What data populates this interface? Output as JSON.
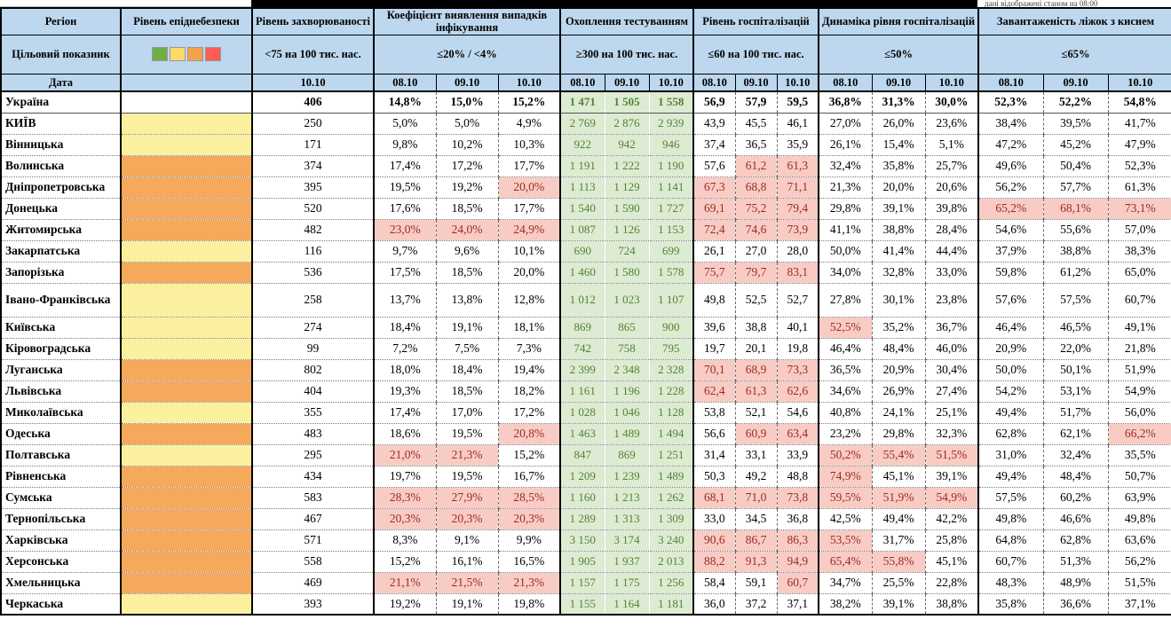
{
  "top_note": "дані відображені станом на 08:00",
  "header": {
    "col_region": "Регіон",
    "col_danger": "Рівень епіднебезпеки",
    "col_incidence": "Рівень захворюваності",
    "col_coef": "Коефіцієнт виявлення випадків інфікування",
    "col_testing": "Охоплення тестуванням",
    "col_hosp": "Рівень госпіталізацій",
    "col_dyn": "Динаміка рівня госпіталізацій",
    "col_oxygen": "Завантаженість ліжок з киснем",
    "row2_label": "Цільовий показник",
    "row3_label": "Дата",
    "target_incidence": "<75 на 100 тис. нас.",
    "target_coef": "≤20% / <4%",
    "target_testing": "≥300 на 100 тис. нас.",
    "target_hosp": "≤60 на 100 тис. нас.",
    "target_dyn": "≤50%",
    "target_oxygen": "≤65%",
    "incidence_date": "10.10",
    "dates": [
      "08.10",
      "09.10",
      "10.10"
    ],
    "legend_colors": [
      "#70AD47",
      "#FFD966",
      "#F4A04C",
      "#FF5B57"
    ]
  },
  "rows": [
    {
      "name": "Україна",
      "danger": "",
      "bold": true,
      "inc": "406",
      "coef": [
        "14,8%",
        "15,0%",
        "15,2%"
      ],
      "chl": [
        0,
        0,
        0
      ],
      "test": [
        "1 471",
        "1 505",
        "1 558"
      ],
      "hosp": [
        "56,9",
        "57,9",
        "59,5"
      ],
      "hhl": [
        0,
        0,
        0
      ],
      "dyn": [
        "36,8%",
        "31,3%",
        "30,0%"
      ],
      "dhl": [
        0,
        0,
        0
      ],
      "oxy": [
        "52,3%",
        "52,2%",
        "54,8%"
      ],
      "ohl": [
        0,
        0,
        0
      ]
    },
    {
      "name": "КИЇВ",
      "danger": "yellow",
      "inc": "250",
      "coef": [
        "5,0%",
        "5,0%",
        "4,9%"
      ],
      "chl": [
        0,
        0,
        0
      ],
      "test": [
        "2 769",
        "2 876",
        "2 939"
      ],
      "hosp": [
        "43,9",
        "45,5",
        "46,1"
      ],
      "hhl": [
        0,
        0,
        0
      ],
      "dyn": [
        "27,0%",
        "26,0%",
        "23,6%"
      ],
      "dhl": [
        0,
        0,
        0
      ],
      "oxy": [
        "38,4%",
        "39,5%",
        "41,7%"
      ],
      "ohl": [
        0,
        0,
        0
      ]
    },
    {
      "name": "Вінницька",
      "danger": "yellow",
      "inc": "171",
      "coef": [
        "9,8%",
        "10,2%",
        "10,3%"
      ],
      "chl": [
        0,
        0,
        0
      ],
      "test": [
        "922",
        "942",
        "946"
      ],
      "hosp": [
        "37,4",
        "36,5",
        "35,9"
      ],
      "hhl": [
        0,
        0,
        0
      ],
      "dyn": [
        "26,1%",
        "15,4%",
        "5,1%"
      ],
      "dhl": [
        0,
        0,
        0
      ],
      "oxy": [
        "47,2%",
        "45,2%",
        "47,9%"
      ],
      "ohl": [
        0,
        0,
        0
      ]
    },
    {
      "name": "Волинська",
      "danger": "orange",
      "inc": "374",
      "coef": [
        "17,4%",
        "17,2%",
        "17,7%"
      ],
      "chl": [
        0,
        0,
        0
      ],
      "test": [
        "1 191",
        "1 222",
        "1 190"
      ],
      "hosp": [
        "57,6",
        "61,2",
        "61,3"
      ],
      "hhl": [
        0,
        1,
        1
      ],
      "dyn": [
        "32,4%",
        "35,8%",
        "25,7%"
      ],
      "dhl": [
        0,
        0,
        0
      ],
      "oxy": [
        "49,6%",
        "50,4%",
        "52,3%"
      ],
      "ohl": [
        0,
        0,
        0
      ]
    },
    {
      "name": "Дніпропетровська",
      "danger": "orange",
      "inc": "395",
      "coef": [
        "19,5%",
        "19,2%",
        "20,0%"
      ],
      "chl": [
        0,
        0,
        1
      ],
      "test": [
        "1 113",
        "1 129",
        "1 141"
      ],
      "hosp": [
        "67,3",
        "68,8",
        "71,1"
      ],
      "hhl": [
        1,
        1,
        1
      ],
      "dyn": [
        "21,3%",
        "20,0%",
        "20,6%"
      ],
      "dhl": [
        0,
        0,
        0
      ],
      "oxy": [
        "56,2%",
        "57,7%",
        "61,3%"
      ],
      "ohl": [
        0,
        0,
        0
      ]
    },
    {
      "name": "Донецька",
      "danger": "orange",
      "inc": "520",
      "coef": [
        "17,6%",
        "18,5%",
        "17,7%"
      ],
      "chl": [
        0,
        0,
        0
      ],
      "test": [
        "1 540",
        "1 590",
        "1 727"
      ],
      "hosp": [
        "69,1",
        "75,2",
        "79,4"
      ],
      "hhl": [
        1,
        1,
        1
      ],
      "dyn": [
        "29,8%",
        "39,1%",
        "39,8%"
      ],
      "dhl": [
        0,
        0,
        0
      ],
      "oxy": [
        "65,2%",
        "68,1%",
        "73,1%"
      ],
      "ohl": [
        1,
        1,
        1
      ]
    },
    {
      "name": "Житомирська",
      "danger": "orange",
      "inc": "482",
      "coef": [
        "23,0%",
        "24,0%",
        "24,9%"
      ],
      "chl": [
        1,
        1,
        1
      ],
      "test": [
        "1 087",
        "1 126",
        "1 153"
      ],
      "hosp": [
        "72,4",
        "74,6",
        "73,9"
      ],
      "hhl": [
        1,
        1,
        1
      ],
      "dyn": [
        "41,1%",
        "38,8%",
        "28,4%"
      ],
      "dhl": [
        0,
        0,
        0
      ],
      "oxy": [
        "54,6%",
        "55,6%",
        "57,0%"
      ],
      "ohl": [
        0,
        0,
        0
      ]
    },
    {
      "name": "Закарпатська",
      "danger": "yellow",
      "inc": "116",
      "coef": [
        "9,7%",
        "9,6%",
        "10,1%"
      ],
      "chl": [
        0,
        0,
        0
      ],
      "test": [
        "690",
        "724",
        "699"
      ],
      "hosp": [
        "26,1",
        "27,0",
        "28,0"
      ],
      "hhl": [
        0,
        0,
        0
      ],
      "dyn": [
        "50,0%",
        "41,4%",
        "44,4%"
      ],
      "dhl": [
        0,
        0,
        0
      ],
      "oxy": [
        "37,9%",
        "38,8%",
        "38,3%"
      ],
      "ohl": [
        0,
        0,
        0
      ]
    },
    {
      "name": "Запорізька",
      "danger": "orange",
      "inc": "536",
      "coef": [
        "17,5%",
        "18,5%",
        "20,0%"
      ],
      "chl": [
        0,
        0,
        0
      ],
      "test": [
        "1 460",
        "1 580",
        "1 578"
      ],
      "hosp": [
        "75,7",
        "79,7",
        "83,1"
      ],
      "hhl": [
        1,
        1,
        1
      ],
      "dyn": [
        "34,0%",
        "32,8%",
        "33,0%"
      ],
      "dhl": [
        0,
        0,
        0
      ],
      "oxy": [
        "59,8%",
        "61,2%",
        "65,0%"
      ],
      "ohl": [
        0,
        0,
        0
      ]
    },
    {
      "name": "Івано-Франківська",
      "danger": "yellow",
      "tall": true,
      "inc": "258",
      "coef": [
        "13,7%",
        "13,8%",
        "12,8%"
      ],
      "chl": [
        0,
        0,
        0
      ],
      "test": [
        "1 012",
        "1 023",
        "1 107"
      ],
      "hosp": [
        "49,8",
        "52,5",
        "52,7"
      ],
      "hhl": [
        0,
        0,
        0
      ],
      "dyn": [
        "27,8%",
        "30,1%",
        "23,8%"
      ],
      "dhl": [
        0,
        0,
        0
      ],
      "oxy": [
        "57,6%",
        "57,5%",
        "60,7%"
      ],
      "ohl": [
        0,
        0,
        0
      ]
    },
    {
      "name": "Київська",
      "danger": "yellow",
      "inc": "274",
      "coef": [
        "18,4%",
        "19,1%",
        "18,1%"
      ],
      "chl": [
        0,
        0,
        0
      ],
      "test": [
        "869",
        "865",
        "900"
      ],
      "hosp": [
        "39,6",
        "38,8",
        "40,1"
      ],
      "hhl": [
        0,
        0,
        0
      ],
      "dyn": [
        "52,5%",
        "35,2%",
        "36,7%"
      ],
      "dhl": [
        1,
        0,
        0
      ],
      "oxy": [
        "46,4%",
        "46,5%",
        "49,1%"
      ],
      "ohl": [
        0,
        0,
        0
      ]
    },
    {
      "name": "Кіровоградська",
      "danger": "yellow",
      "inc": "99",
      "coef": [
        "7,2%",
        "7,5%",
        "7,3%"
      ],
      "chl": [
        0,
        0,
        0
      ],
      "test": [
        "742",
        "758",
        "795"
      ],
      "hosp": [
        "19,7",
        "20,1",
        "19,8"
      ],
      "hhl": [
        0,
        0,
        0
      ],
      "dyn": [
        "46,4%",
        "48,4%",
        "46,0%"
      ],
      "dhl": [
        0,
        0,
        0
      ],
      "oxy": [
        "20,9%",
        "22,0%",
        "21,8%"
      ],
      "ohl": [
        0,
        0,
        0
      ]
    },
    {
      "name": "Луганська",
      "danger": "orange",
      "inc": "802",
      "coef": [
        "18,0%",
        "18,4%",
        "19,4%"
      ],
      "chl": [
        0,
        0,
        0
      ],
      "test": [
        "2 399",
        "2 348",
        "2 328"
      ],
      "hosp": [
        "70,1",
        "68,9",
        "73,3"
      ],
      "hhl": [
        1,
        1,
        1
      ],
      "dyn": [
        "36,5%",
        "20,9%",
        "30,4%"
      ],
      "dhl": [
        0,
        0,
        0
      ],
      "oxy": [
        "50,0%",
        "50,1%",
        "51,9%"
      ],
      "ohl": [
        0,
        0,
        0
      ]
    },
    {
      "name": "Львівська",
      "danger": "orange",
      "inc": "404",
      "coef": [
        "19,3%",
        "18,5%",
        "18,2%"
      ],
      "chl": [
        0,
        0,
        0
      ],
      "test": [
        "1 161",
        "1 196",
        "1 228"
      ],
      "hosp": [
        "62,4",
        "61,3",
        "62,6"
      ],
      "hhl": [
        1,
        1,
        1
      ],
      "dyn": [
        "34,6%",
        "26,9%",
        "27,4%"
      ],
      "dhl": [
        0,
        0,
        0
      ],
      "oxy": [
        "54,2%",
        "53,1%",
        "54,9%"
      ],
      "ohl": [
        0,
        0,
        0
      ]
    },
    {
      "name": "Миколаївська",
      "danger": "yellow",
      "inc": "355",
      "coef": [
        "17,4%",
        "17,0%",
        "17,2%"
      ],
      "chl": [
        0,
        0,
        0
      ],
      "test": [
        "1 028",
        "1 046",
        "1 128"
      ],
      "hosp": [
        "53,8",
        "52,1",
        "54,6"
      ],
      "hhl": [
        0,
        0,
        0
      ],
      "dyn": [
        "40,8%",
        "24,1%",
        "25,1%"
      ],
      "dhl": [
        0,
        0,
        0
      ],
      "oxy": [
        "49,4%",
        "51,7%",
        "56,0%"
      ],
      "ohl": [
        0,
        0,
        0
      ]
    },
    {
      "name": "Одеська",
      "danger": "orange",
      "inc": "483",
      "coef": [
        "18,6%",
        "19,5%",
        "20,8%"
      ],
      "chl": [
        0,
        0,
        1
      ],
      "test": [
        "1 463",
        "1 489",
        "1 494"
      ],
      "hosp": [
        "56,6",
        "60,9",
        "63,4"
      ],
      "hhl": [
        0,
        1,
        1
      ],
      "dyn": [
        "23,2%",
        "29,8%",
        "32,3%"
      ],
      "dhl": [
        0,
        0,
        0
      ],
      "oxy": [
        "62,8%",
        "62,1%",
        "66,2%"
      ],
      "ohl": [
        0,
        0,
        1
      ]
    },
    {
      "name": "Полтавська",
      "danger": "yellow",
      "inc": "295",
      "coef": [
        "21,0%",
        "21,3%",
        "15,2%"
      ],
      "chl": [
        1,
        1,
        0
      ],
      "test": [
        "847",
        "869",
        "1 251"
      ],
      "hosp": [
        "31,4",
        "33,1",
        "33,9"
      ],
      "hhl": [
        0,
        0,
        0
      ],
      "dyn": [
        "50,2%",
        "55,4%",
        "51,5%"
      ],
      "dhl": [
        1,
        1,
        1
      ],
      "oxy": [
        "31,0%",
        "32,4%",
        "35,5%"
      ],
      "ohl": [
        0,
        0,
        0
      ]
    },
    {
      "name": "Рівненська",
      "danger": "orange",
      "inc": "434",
      "coef": [
        "19,7%",
        "19,5%",
        "16,7%"
      ],
      "chl": [
        0,
        0,
        0
      ],
      "test": [
        "1 209",
        "1 239",
        "1 489"
      ],
      "hosp": [
        "50,3",
        "49,2",
        "48,8"
      ],
      "hhl": [
        0,
        0,
        0
      ],
      "dyn": [
        "74,9%",
        "45,1%",
        "39,1%"
      ],
      "dhl": [
        1,
        0,
        0
      ],
      "oxy": [
        "49,4%",
        "48,4%",
        "50,7%"
      ],
      "ohl": [
        0,
        0,
        0
      ]
    },
    {
      "name": "Сумська",
      "danger": "orange",
      "inc": "583",
      "coef": [
        "28,3%",
        "27,9%",
        "28,5%"
      ],
      "chl": [
        1,
        1,
        1
      ],
      "test": [
        "1 160",
        "1 213",
        "1 262"
      ],
      "hosp": [
        "68,1",
        "71,0",
        "73,8"
      ],
      "hhl": [
        1,
        1,
        1
      ],
      "dyn": [
        "59,5%",
        "51,9%",
        "54,9%"
      ],
      "dhl": [
        1,
        1,
        1
      ],
      "oxy": [
        "57,5%",
        "60,2%",
        "63,9%"
      ],
      "ohl": [
        0,
        0,
        0
      ]
    },
    {
      "name": "Тернопільська",
      "danger": "orange",
      "inc": "467",
      "coef": [
        "20,3%",
        "20,3%",
        "20,3%"
      ],
      "chl": [
        1,
        1,
        1
      ],
      "test": [
        "1 289",
        "1 313",
        "1 309"
      ],
      "hosp": [
        "33,0",
        "34,5",
        "36,8"
      ],
      "hhl": [
        0,
        0,
        0
      ],
      "dyn": [
        "42,5%",
        "49,4%",
        "42,2%"
      ],
      "dhl": [
        0,
        0,
        0
      ],
      "oxy": [
        "49,8%",
        "46,6%",
        "49,8%"
      ],
      "ohl": [
        0,
        0,
        0
      ]
    },
    {
      "name": "Харківська",
      "danger": "orange",
      "inc": "571",
      "coef": [
        "8,3%",
        "9,1%",
        "9,9%"
      ],
      "chl": [
        0,
        0,
        0
      ],
      "test": [
        "3 150",
        "3 174",
        "3 240"
      ],
      "hosp": [
        "90,6",
        "86,7",
        "86,3"
      ],
      "hhl": [
        1,
        1,
        1
      ],
      "dyn": [
        "53,5%",
        "31,7%",
        "25,8%"
      ],
      "dhl": [
        1,
        0,
        0
      ],
      "oxy": [
        "64,8%",
        "62,8%",
        "63,6%"
      ],
      "ohl": [
        0,
        0,
        0
      ]
    },
    {
      "name": "Херсонська",
      "danger": "orange",
      "inc": "558",
      "coef": [
        "15,2%",
        "16,1%",
        "16,5%"
      ],
      "chl": [
        0,
        0,
        0
      ],
      "test": [
        "1 905",
        "1 937",
        "2 013"
      ],
      "hosp": [
        "88,2",
        "91,3",
        "94,9"
      ],
      "hhl": [
        1,
        1,
        1
      ],
      "dyn": [
        "65,4%",
        "55,8%",
        "45,1%"
      ],
      "dhl": [
        1,
        1,
        0
      ],
      "oxy": [
        "60,7%",
        "51,3%",
        "56,2%"
      ],
      "ohl": [
        0,
        0,
        0
      ]
    },
    {
      "name": "Хмельницька",
      "danger": "orange",
      "inc": "469",
      "coef": [
        "21,1%",
        "21,5%",
        "21,3%"
      ],
      "chl": [
        1,
        1,
        1
      ],
      "test": [
        "1 157",
        "1 175",
        "1 256"
      ],
      "hosp": [
        "58,4",
        "59,1",
        "60,7"
      ],
      "hhl": [
        0,
        0,
        1
      ],
      "dyn": [
        "34,7%",
        "25,5%",
        "22,8%"
      ],
      "dhl": [
        0,
        0,
        0
      ],
      "oxy": [
        "48,3%",
        "48,9%",
        "51,5%"
      ],
      "ohl": [
        0,
        0,
        0
      ]
    },
    {
      "name": "Черкаська",
      "danger": "yellow",
      "inc": "393",
      "coef": [
        "19,2%",
        "19,1%",
        "19,8%"
      ],
      "chl": [
        0,
        0,
        0
      ],
      "test": [
        "1 155",
        "1 164",
        "1 181"
      ],
      "hosp": [
        "36,0",
        "37,2",
        "37,1"
      ],
      "hhl": [
        0,
        0,
        0
      ],
      "dyn": [
        "38,2%",
        "39,1%",
        "38,8%"
      ],
      "dhl": [
        0,
        0,
        0
      ],
      "oxy": [
        "35,8%",
        "36,6%",
        "37,1%"
      ],
      "ohl": [
        0,
        0,
        0
      ]
    }
  ]
}
